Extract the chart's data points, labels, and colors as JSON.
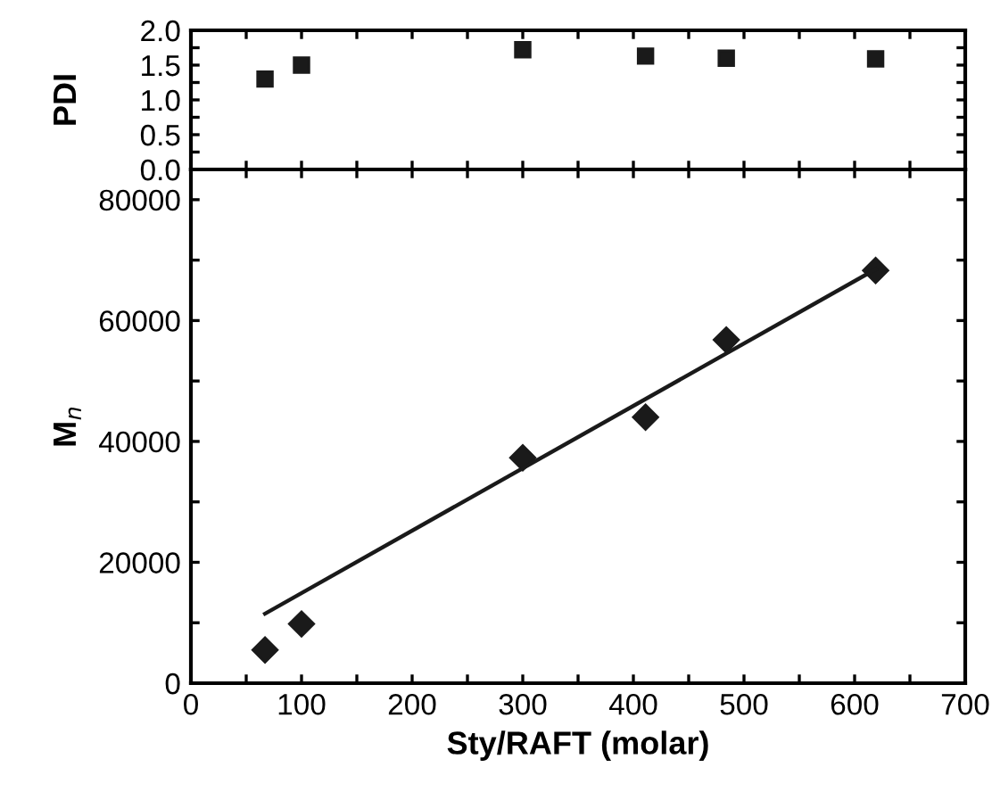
{
  "chart_data": [
    {
      "type": "scatter",
      "ylabel": "PDI",
      "x": [
        67,
        100,
        300,
        411,
        484,
        619
      ],
      "series": [
        {
          "color": "#1a1a1a",
          "values": [
            1.3,
            1.5,
            1.72,
            1.63,
            1.6,
            1.59
          ],
          "marker": "square"
        }
      ],
      "xlim": [
        0,
        700
      ],
      "ylim": [
        0,
        2.0
      ],
      "xticks": [
        0,
        {
          "value": 50,
          "label": null
        },
        100,
        {
          "value": 150,
          "label": null
        },
        200,
        {
          "value": 250,
          "label": null
        },
        300,
        {
          "value": 350,
          "label": null
        },
        400,
        {
          "value": 450,
          "label": null
        },
        500,
        {
          "value": 550,
          "label": null
        },
        600,
        {
          "value": 650,
          "label": null
        },
        700
      ],
      "yticks": [
        {
          "value": 0,
          "label": "0.0"
        },
        {
          "value": 0.25,
          "label": null
        },
        0.5,
        {
          "value": 0.75,
          "label": null
        },
        {
          "value": 1,
          "label": "1.0"
        },
        {
          "value": 1.25,
          "label": null
        },
        1.5,
        {
          "value": 1.75,
          "label": null
        },
        {
          "value": 2,
          "label": "2.0"
        }
      ],
      "tick_labels": "y",
      "grid": false,
      "legend": false
    },
    {
      "type": "scatter",
      "xlabel": "Sty/RAFT (molar)",
      "ylabel": "M$_{n}$",
      "x": [
        67,
        100,
        300,
        411,
        484,
        619
      ],
      "series": [
        {
          "color": "#1a1a1a",
          "values": [
            5500,
            9800,
            37300,
            44000,
            56800,
            68300
          ],
          "marker": "diamond"
        },
        {
          "type": "line",
          "color": "#1a1a1a",
          "x": [
            67,
            619
          ],
          "values": [
            11500,
            68500
          ],
          "marker": "none",
          "line_style": "solid"
        }
      ],
      "xlim": [
        0,
        700
      ],
      "ylim": [
        0,
        85000
      ],
      "xticks": [
        0,
        {
          "value": 50,
          "label": null
        },
        100,
        {
          "value": 150,
          "label": null
        },
        200,
        {
          "value": 250,
          "label": null
        },
        300,
        {
          "value": 350,
          "label": null
        },
        400,
        {
          "value": 450,
          "label": null
        },
        500,
        {
          "value": 550,
          "label": null
        },
        600,
        {
          "value": 650,
          "label": null
        },
        700
      ],
      "yticks": [
        0,
        {
          "value": 10000,
          "label": null
        },
        20000,
        {
          "value": 30000,
          "label": null
        },
        40000,
        {
          "value": 50000,
          "label": null
        },
        60000,
        {
          "value": 70000,
          "label": null
        },
        80000
      ],
      "grid": false,
      "legend": false
    }
  ]
}
